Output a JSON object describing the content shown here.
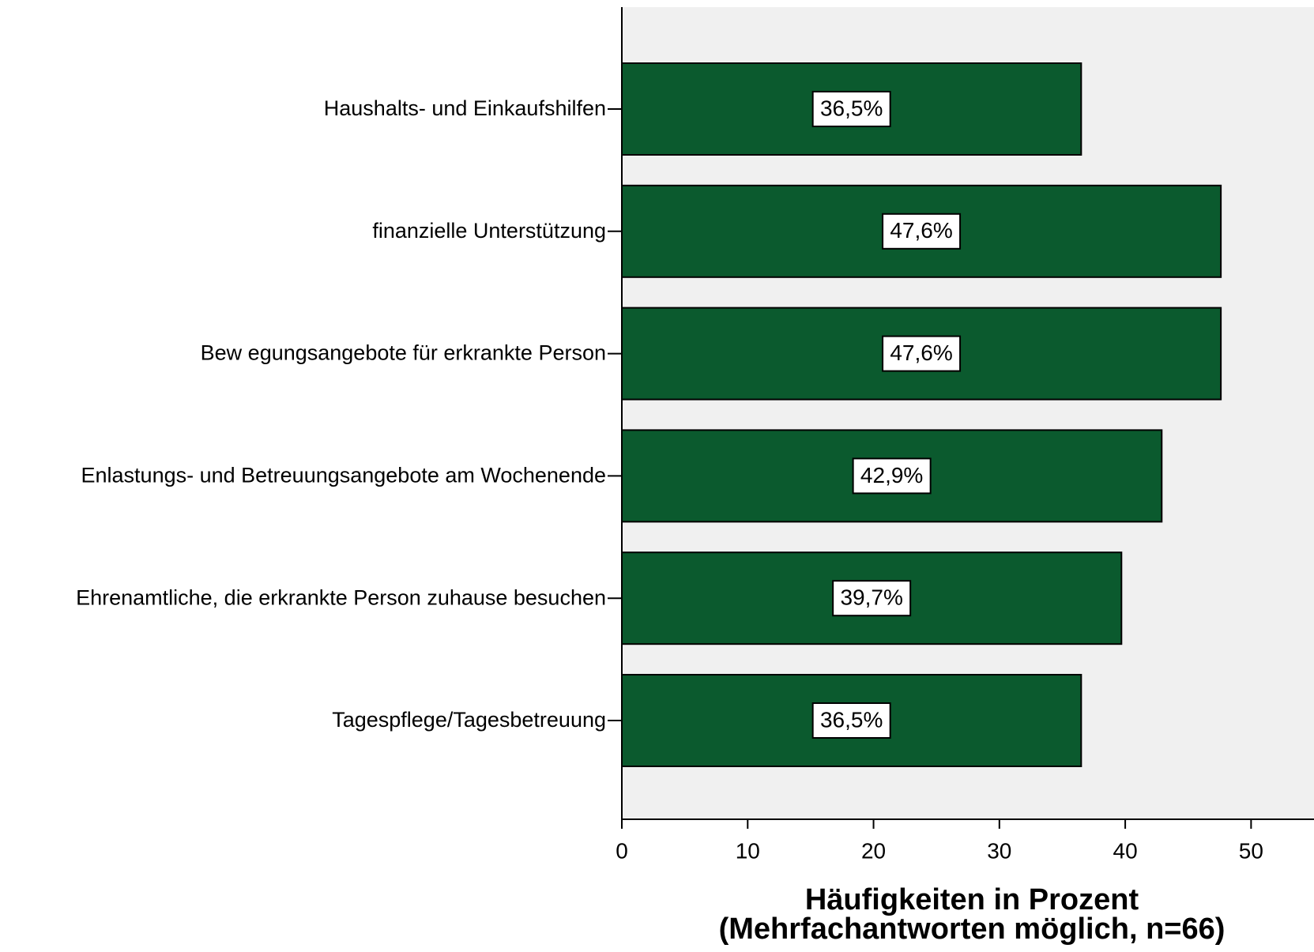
{
  "chart_data": {
    "type": "barh",
    "categories": [
      "Haushalts- und Einkaufshilfen",
      "finanzielle Unterstützung",
      "Bew egungsangebote für erkrankte Person",
      "Enlastungs- und Betreuungsangebote am Wochenende",
      "Ehrenamtliche, die erkrankte Person zuhause besuchen",
      "Tagespflege/Tagesbetreuung"
    ],
    "values": [
      36.5,
      47.6,
      47.6,
      42.9,
      39.7,
      36.5
    ],
    "value_labels": [
      "36,5%",
      "47,6%",
      "47,6%",
      "42,9%",
      "39,7%",
      "36,5%"
    ],
    "color": "#0b5a2e",
    "xlim": [
      0,
      55
    ],
    "xticks": [
      0,
      10,
      20,
      30,
      40,
      50
    ],
    "xlabel": [
      "Häufigkeiten in Prozent",
      "(Mehrfachantworten möglich, n=66)"
    ]
  }
}
